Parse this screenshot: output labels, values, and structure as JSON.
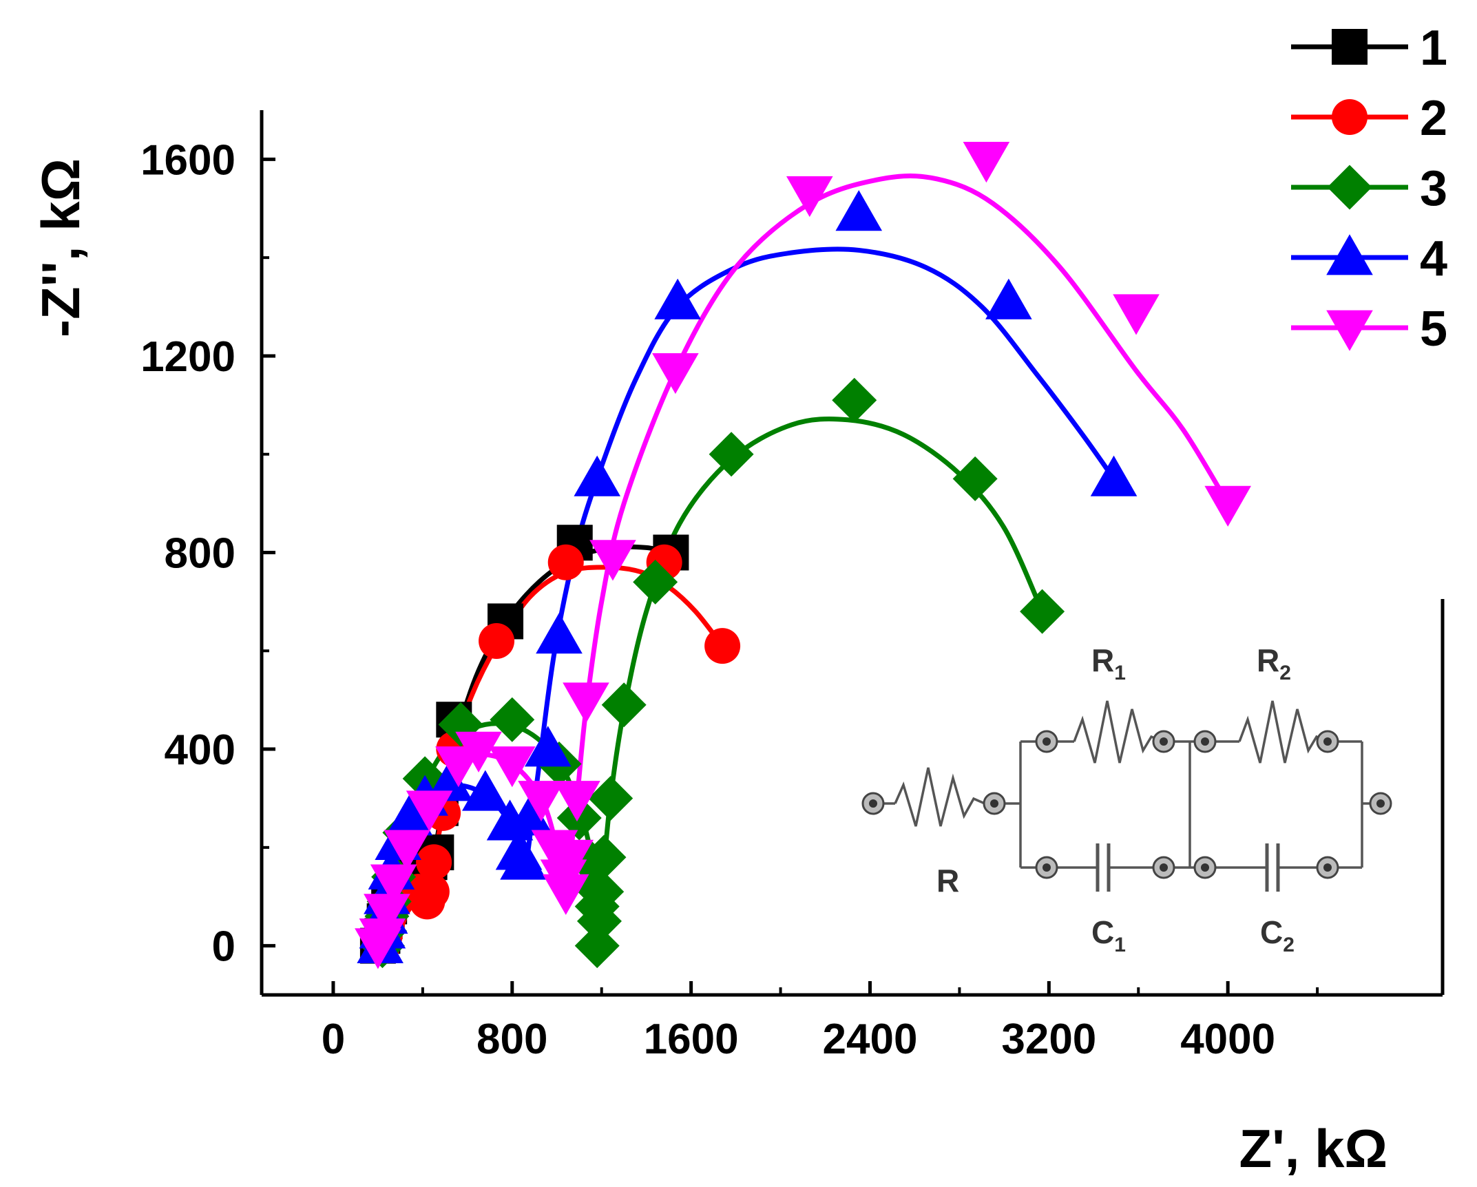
{
  "chart_data": {
    "type": "scatter",
    "xlabel": "Z', kΩ",
    "ylabel": "-Z'', kΩ",
    "xlim": [
      -320,
      4960
    ],
    "ylim": [
      -100,
      1700
    ],
    "xticks": [
      0,
      800,
      1600,
      2400,
      3200,
      4000
    ],
    "yticks": [
      0,
      400,
      800,
      1200,
      1600
    ],
    "legend_position": "top-right",
    "series": [
      {
        "name": "1",
        "color": "#000000",
        "marker": "square",
        "points": [
          [
            200,
            0
          ],
          [
            220,
            20
          ],
          [
            230,
            50
          ],
          [
            250,
            80
          ],
          [
            280,
            110
          ],
          [
            320,
            140
          ],
          [
            380,
            160
          ],
          [
            430,
            170
          ],
          [
            460,
            190
          ],
          [
            480,
            280
          ],
          [
            540,
            460
          ],
          [
            770,
            660
          ],
          [
            1080,
            820
          ],
          [
            1510,
            800
          ]
        ],
        "fit": [
          [
            200,
            0
          ],
          [
            250,
            80
          ],
          [
            320,
            140
          ],
          [
            400,
            170
          ],
          [
            460,
            210
          ],
          [
            500,
            330
          ],
          [
            560,
            440
          ],
          [
            650,
            560
          ],
          [
            770,
            660
          ],
          [
            920,
            740
          ],
          [
            1080,
            790
          ],
          [
            1250,
            810
          ],
          [
            1400,
            810
          ],
          [
            1510,
            800
          ]
        ]
      },
      {
        "name": "2",
        "color": "#ff0000",
        "marker": "circle",
        "points": [
          [
            220,
            0
          ],
          [
            230,
            20
          ],
          [
            240,
            40
          ],
          [
            250,
            60
          ],
          [
            280,
            90
          ],
          [
            330,
            110
          ],
          [
            380,
            110
          ],
          [
            420,
            90
          ],
          [
            440,
            110
          ],
          [
            450,
            170
          ],
          [
            490,
            270
          ],
          [
            540,
            400
          ],
          [
            730,
            620
          ],
          [
            1040,
            780
          ],
          [
            1480,
            780
          ],
          [
            1740,
            610
          ]
        ],
        "fit": [
          [
            220,
            0
          ],
          [
            250,
            60
          ],
          [
            300,
            100
          ],
          [
            380,
            110
          ],
          [
            420,
            95
          ],
          [
            440,
            115
          ],
          [
            450,
            170
          ],
          [
            490,
            270
          ],
          [
            540,
            400
          ],
          [
            620,
            510
          ],
          [
            730,
            610
          ],
          [
            880,
            710
          ],
          [
            1040,
            760
          ],
          [
            1220,
            770
          ],
          [
            1380,
            760
          ],
          [
            1500,
            730
          ],
          [
            1620,
            680
          ],
          [
            1740,
            610
          ]
        ]
      },
      {
        "name": "3",
        "color": "#008000",
        "marker": "diamond",
        "points": [
          [
            220,
            0
          ],
          [
            230,
            30
          ],
          [
            240,
            60
          ],
          [
            250,
            90
          ],
          [
            270,
            140
          ],
          [
            320,
            230
          ],
          [
            410,
            340
          ],
          [
            570,
            450
          ],
          [
            800,
            460
          ],
          [
            1010,
            370
          ],
          [
            1100,
            260
          ],
          [
            1150,
            170
          ],
          [
            1170,
            120
          ],
          [
            1180,
            80
          ],
          [
            1190,
            50
          ],
          [
            1180,
            0
          ],
          [
            1200,
            110
          ],
          [
            1210,
            180
          ],
          [
            1240,
            300
          ],
          [
            1300,
            490
          ],
          [
            1440,
            740
          ],
          [
            1780,
            1000
          ],
          [
            2330,
            1110
          ],
          [
            2870,
            950
          ],
          [
            3170,
            680
          ]
        ],
        "fit": [
          [
            220,
            0
          ],
          [
            250,
            90
          ],
          [
            300,
            200
          ],
          [
            400,
            320
          ],
          [
            520,
            410
          ],
          [
            680,
            450
          ],
          [
            850,
            440
          ],
          [
            1000,
            380
          ],
          [
            1100,
            280
          ],
          [
            1160,
            170
          ],
          [
            1190,
            60
          ],
          [
            1200,
            110
          ],
          [
            1240,
            300
          ],
          [
            1300,
            480
          ],
          [
            1400,
            680
          ],
          [
            1550,
            860
          ],
          [
            1780,
            990
          ],
          [
            2050,
            1060
          ],
          [
            2300,
            1070
          ],
          [
            2550,
            1040
          ],
          [
            2800,
            960
          ],
          [
            3000,
            850
          ],
          [
            3170,
            680
          ]
        ]
      },
      {
        "name": "4",
        "color": "#0000ff",
        "marker": "triangle-up",
        "points": [
          [
            210,
            0
          ],
          [
            220,
            30
          ],
          [
            230,
            60
          ],
          [
            240,
            100
          ],
          [
            260,
            150
          ],
          [
            290,
            210
          ],
          [
            340,
            260
          ],
          [
            410,
            300
          ],
          [
            520,
            330
          ],
          [
            680,
            310
          ],
          [
            790,
            250
          ],
          [
            830,
            190
          ],
          [
            850,
            170
          ],
          [
            880,
            260
          ],
          [
            960,
            400
          ],
          [
            1010,
            630
          ],
          [
            1180,
            950
          ],
          [
            1540,
            1310
          ],
          [
            2350,
            1490
          ],
          [
            3020,
            1310
          ],
          [
            3490,
            950
          ]
        ],
        "fit": [
          [
            210,
            0
          ],
          [
            240,
            100
          ],
          [
            300,
            220
          ],
          [
            400,
            290
          ],
          [
            520,
            325
          ],
          [
            650,
            315
          ],
          [
            760,
            270
          ],
          [
            830,
            200
          ],
          [
            860,
            170
          ],
          [
            890,
            260
          ],
          [
            930,
            400
          ],
          [
            990,
            600
          ],
          [
            1080,
            800
          ],
          [
            1180,
            950
          ],
          [
            1350,
            1150
          ],
          [
            1540,
            1300
          ],
          [
            1800,
            1380
          ],
          [
            2050,
            1410
          ],
          [
            2350,
            1415
          ],
          [
            2650,
            1380
          ],
          [
            2900,
            1300
          ],
          [
            3150,
            1160
          ],
          [
            3350,
            1040
          ],
          [
            3490,
            950
          ]
        ]
      },
      {
        "name": "5",
        "color": "#ff00ff",
        "marker": "triangle-down",
        "points": [
          [
            200,
            0
          ],
          [
            220,
            20
          ],
          [
            240,
            70
          ],
          [
            270,
            130
          ],
          [
            330,
            200
          ],
          [
            430,
            280
          ],
          [
            560,
            370
          ],
          [
            650,
            400
          ],
          [
            800,
            370
          ],
          [
            930,
            300
          ],
          [
            990,
            200
          ],
          [
            1030,
            140
          ],
          [
            1040,
            110
          ],
          [
            1060,
            180
          ],
          [
            1090,
            300
          ],
          [
            1130,
            500
          ],
          [
            1250,
            790
          ],
          [
            1530,
            1170
          ],
          [
            2130,
            1530
          ],
          [
            2920,
            1600
          ],
          [
            3590,
            1290
          ],
          [
            4000,
            900
          ]
        ],
        "fit": [
          [
            200,
            0
          ],
          [
            240,
            70
          ],
          [
            330,
            200
          ],
          [
            450,
            300
          ],
          [
            560,
            370
          ],
          [
            650,
            390
          ],
          [
            800,
            370
          ],
          [
            930,
            300
          ],
          [
            1000,
            200
          ],
          [
            1040,
            110
          ],
          [
            1060,
            180
          ],
          [
            1090,
            300
          ],
          [
            1130,
            480
          ],
          [
            1200,
            700
          ],
          [
            1300,
            900
          ],
          [
            1530,
            1170
          ],
          [
            1800,
            1380
          ],
          [
            2130,
            1510
          ],
          [
            2450,
            1560
          ],
          [
            2700,
            1560
          ],
          [
            2950,
            1510
          ],
          [
            3250,
            1380
          ],
          [
            3590,
            1170
          ],
          [
            3800,
            1050
          ],
          [
            4000,
            900
          ]
        ]
      }
    ],
    "inset_circuit": {
      "labels": [
        "R",
        "R1",
        "R2",
        "C1",
        "C2"
      ]
    }
  }
}
